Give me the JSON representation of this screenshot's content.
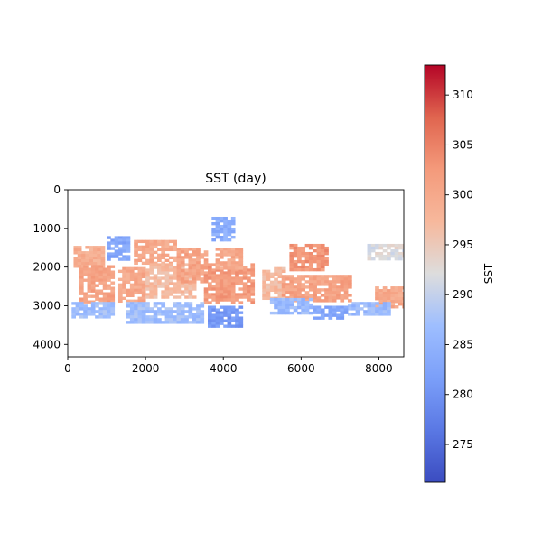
{
  "chart_data": {
    "type": "heatmap",
    "title": "SST (day)",
    "xlabel": "",
    "ylabel": "",
    "xlim": [
      0,
      8640
    ],
    "ylim": [
      4320,
      0
    ],
    "x_ticks": [
      0,
      2000,
      4000,
      6000,
      8000
    ],
    "y_ticks": [
      0,
      1000,
      2000,
      3000,
      4000
    ],
    "x_tick_labels": [
      "0",
      "2000",
      "4000",
      "6000",
      "8000"
    ],
    "y_tick_labels": [
      "0",
      "1000",
      "2000",
      "3000",
      "4000"
    ],
    "grid": false,
    "colormap": "coolwarm",
    "colorbar": {
      "label": "SST",
      "vmin": 271.2,
      "vmax": 313.0,
      "ticks": [
        275,
        280,
        285,
        290,
        295,
        300,
        305,
        310
      ],
      "tick_labels": [
        "275",
        "280",
        "285",
        "290",
        "295",
        "300",
        "305",
        "310"
      ]
    },
    "patches": [
      {
        "x": [
          150,
          900
        ],
        "y": [
          1450,
          2000
        ],
        "sst": 299
      },
      {
        "x": [
          300,
          1200
        ],
        "y": [
          1950,
          2900
        ],
        "sst": 301
      },
      {
        "x": [
          1000,
          1600
        ],
        "y": [
          1200,
          1800
        ],
        "sst": 283
      },
      {
        "x": [
          1300,
          2000
        ],
        "y": [
          2000,
          2900
        ],
        "sst": 300
      },
      {
        "x": [
          1700,
          2800
        ],
        "y": [
          1300,
          1900
        ],
        "sst": 300
      },
      {
        "x": [
          2000,
          3300
        ],
        "y": [
          1900,
          2800
        ],
        "sst": 297
      },
      {
        "x": [
          2800,
          3600
        ],
        "y": [
          1500,
          2400
        ],
        "sst": 301
      },
      {
        "x": [
          3500,
          4800
        ],
        "y": [
          1900,
          2900
        ],
        "sst": 302
      },
      {
        "x": [
          3700,
          4300
        ],
        "y": [
          700,
          1300
        ],
        "sst": 284
      },
      {
        "x": [
          3800,
          4500
        ],
        "y": [
          1500,
          2000
        ],
        "sst": 300
      },
      {
        "x": [
          5000,
          5600
        ],
        "y": [
          2000,
          2800
        ],
        "sst": 297
      },
      {
        "x": [
          5700,
          6700
        ],
        "y": [
          1400,
          2100
        ],
        "sst": 303
      },
      {
        "x": [
          5500,
          7300
        ],
        "y": [
          2200,
          2900
        ],
        "sst": 301
      },
      {
        "x": [
          7700,
          8640
        ],
        "y": [
          1400,
          1800
        ],
        "sst": 292
      },
      {
        "x": [
          7900,
          8640
        ],
        "y": [
          2500,
          3000
        ],
        "sst": 300
      },
      {
        "x": [
          7200,
          8300
        ],
        "y": [
          2900,
          3200
        ],
        "sst": 286
      },
      {
        "x": [
          100,
          1200
        ],
        "y": [
          2900,
          3300
        ],
        "sst": 287
      },
      {
        "x": [
          1500,
          3500
        ],
        "y": [
          2900,
          3400
        ],
        "sst": 287
      },
      {
        "x": [
          3600,
          4500
        ],
        "y": [
          3000,
          3500
        ],
        "sst": 281
      },
      {
        "x": [
          5200,
          6300
        ],
        "y": [
          2800,
          3200
        ],
        "sst": 286
      },
      {
        "x": [
          6300,
          7200
        ],
        "y": [
          3000,
          3300
        ],
        "sst": 283
      }
    ]
  }
}
